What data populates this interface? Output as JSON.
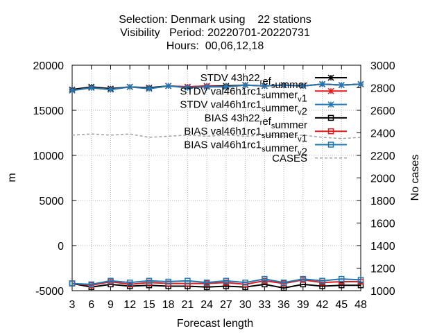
{
  "chart_data": {
    "type": "line",
    "title": [
      "Selection: Denmark using    22 stations",
      "Visibility   Period: 20220701-20220731",
      "Hours:  00,06,12,18"
    ],
    "xlabel": "Forecast length",
    "ylabel": "m",
    "y2label": "No cases",
    "x": [
      3,
      6,
      9,
      12,
      15,
      18,
      21,
      24,
      27,
      30,
      33,
      36,
      39,
      42,
      45,
      48
    ],
    "xlim": [
      3,
      48
    ],
    "ylim": [
      -5000,
      20000
    ],
    "y2lim": [
      1000,
      3000
    ],
    "yticks": [
      "20000",
      "15000",
      "10000",
      "5000",
      "0",
      "-5000"
    ],
    "y2ticks": [
      "3000",
      "2800",
      "2600",
      "2400",
      "2200",
      "2000",
      "1800",
      "1600",
      "1400",
      "1200",
      "1000"
    ],
    "xticks": [
      "3",
      "6",
      "9",
      "12",
      "15",
      "18",
      "21",
      "24",
      "27",
      "30",
      "33",
      "36",
      "39",
      "42",
      "45",
      "48"
    ],
    "grid": true,
    "legend_position": "top-right",
    "series": [
      {
        "name": "STDV 43h22_ref_summer",
        "label_parts": [
          [
            "STDV 43h22",
            ""
          ],
          [
            "r",
            "sub"
          ],
          [
            "ef",
            ""
          ],
          [
            "s",
            "sub"
          ],
          [
            "ummer",
            ""
          ]
        ],
        "color": "#000000",
        "marker": "star",
        "axis": "y",
        "values": [
          17300,
          17600,
          17400,
          17600,
          17500,
          17700,
          17600,
          17700,
          17700,
          17800,
          17700,
          17800,
          17700,
          17900,
          17800,
          17900
        ]
      },
      {
        "name": "STDV val46h1rc1_summer_v1",
        "label_parts": [
          [
            "STDV val46h1rc1",
            ""
          ],
          [
            "s",
            "sub"
          ],
          [
            "ummer",
            ""
          ],
          [
            "v",
            "sub"
          ],
          [
            "1",
            ""
          ]
        ],
        "color": "#e41a1c",
        "marker": "star",
        "axis": "y",
        "values": [
          17200,
          17500,
          17300,
          17600,
          17400,
          17700,
          17600,
          17700,
          17600,
          17800,
          17700,
          17800,
          17700,
          17900,
          17800,
          17900
        ]
      },
      {
        "name": "STDV val46h1rc1_summer_v2",
        "label_parts": [
          [
            "STDV val46h1rc1",
            ""
          ],
          [
            "s",
            "sub"
          ],
          [
            "ummer",
            ""
          ],
          [
            "v",
            "sub"
          ],
          [
            "2",
            ""
          ]
        ],
        "color": "#1f78b4",
        "marker": "star",
        "axis": "y",
        "values": [
          17200,
          17500,
          17300,
          17600,
          17400,
          17700,
          17500,
          17600,
          17600,
          17800,
          17700,
          17800,
          17700,
          17900,
          17800,
          17900
        ]
      },
      {
        "name": "BIAS 43h22_ref_summer",
        "label_parts": [
          [
            "BIAS 43h22",
            ""
          ],
          [
            "r",
            "sub"
          ],
          [
            "ef",
            ""
          ],
          [
            "s",
            "sub"
          ],
          [
            "ummer",
            ""
          ]
        ],
        "color": "#000000",
        "marker": "square",
        "axis": "y",
        "values": [
          -4200,
          -4600,
          -4300,
          -4500,
          -4400,
          -4500,
          -4500,
          -4600,
          -4500,
          -4600,
          -4300,
          -4700,
          -4300,
          -4500,
          -4400,
          -4400
        ]
      },
      {
        "name": "BIAS val46h1rc1_summer_v1",
        "label_parts": [
          [
            "BIAS val46h1rc1",
            ""
          ],
          [
            "s",
            "sub"
          ],
          [
            "ummer",
            ""
          ],
          [
            "v",
            "sub"
          ],
          [
            "1",
            ""
          ]
        ],
        "color": "#e41a1c",
        "marker": "square",
        "axis": "y",
        "values": [
          -4200,
          -4400,
          -4000,
          -4300,
          -4100,
          -4200,
          -4200,
          -4200,
          -4100,
          -4300,
          -3900,
          -4200,
          -3800,
          -4100,
          -4000,
          -4000
        ]
      },
      {
        "name": "BIAS val46h1rc1_summer_v2",
        "label_parts": [
          [
            "BIAS val46h1rc1",
            ""
          ],
          [
            "s",
            "sub"
          ],
          [
            "ummer",
            ""
          ],
          [
            "v",
            "sub"
          ],
          [
            "2",
            ""
          ]
        ],
        "color": "#1f78b4",
        "marker": "square",
        "axis": "y",
        "values": [
          -4200,
          -4300,
          -3900,
          -4100,
          -3900,
          -4000,
          -3900,
          -4100,
          -3900,
          -4100,
          -3700,
          -4100,
          -3700,
          -3900,
          -3700,
          -3800
        ]
      },
      {
        "name": "CASES",
        "label_parts": [
          [
            "CASES",
            ""
          ]
        ],
        "color": "#a0a0a0",
        "marker": "none",
        "dashed": true,
        "axis": "y2",
        "values": [
          2380,
          2390,
          2380,
          2390,
          2360,
          2370,
          2380,
          2370,
          2380,
          2370,
          2380,
          2370,
          2380,
          2360,
          2350,
          2360
        ]
      }
    ]
  }
}
